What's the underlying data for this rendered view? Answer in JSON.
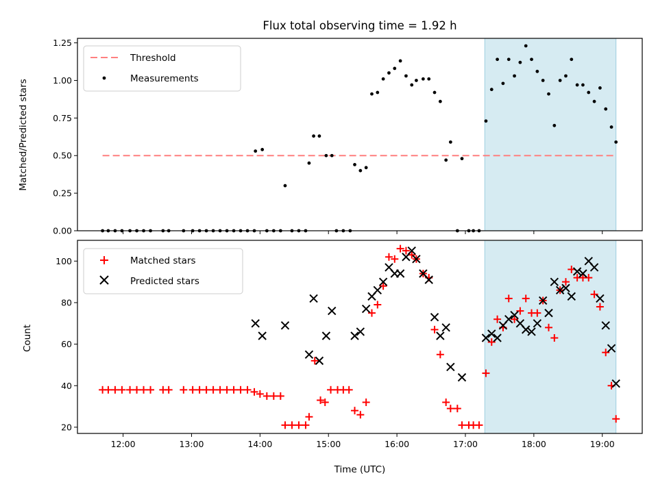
{
  "chart_data": [
    {
      "type": "scatter",
      "title": "Flux total observing time = 1.92 h",
      "xlabel": "",
      "ylabel": "Matched/Predicted stars",
      "xlim": [
        "11:20",
        "19:35"
      ],
      "ylim": [
        0,
        1.28
      ],
      "yticks": [
        "0.00",
        "0.25",
        "0.50",
        "0.75",
        "1.00",
        "1.25"
      ],
      "shaded_region": [
        "17:17",
        "19:12"
      ],
      "threshold": {
        "name": "Threshold",
        "value": 0.5,
        "x_range": [
          "11:42",
          "19:12"
        ],
        "color": "#ff7f7f"
      },
      "legend_position": "upper-left",
      "series": [
        {
          "name": "Measurements",
          "color": "#000000",
          "marker": "dot",
          "points": [
            [
              "11:42",
              0
            ],
            [
              "11:47",
              0
            ],
            [
              "11:53",
              0
            ],
            [
              "11:59",
              0
            ],
            [
              "12:06",
              0
            ],
            [
              "12:12",
              0
            ],
            [
              "12:18",
              0
            ],
            [
              "12:24",
              0
            ],
            [
              "12:35",
              0
            ],
            [
              "12:40",
              0
            ],
            [
              "12:53",
              0
            ],
            [
              "13:01",
              0
            ],
            [
              "13:07",
              0
            ],
            [
              "13:13",
              0
            ],
            [
              "13:19",
              0
            ],
            [
              "13:25",
              0
            ],
            [
              "13:31",
              0
            ],
            [
              "13:37",
              0
            ],
            [
              "13:43",
              0
            ],
            [
              "13:49",
              0
            ],
            [
              "13:55",
              0
            ],
            [
              "13:56",
              0.53
            ],
            [
              "14:02",
              0.54
            ],
            [
              "14:06",
              0
            ],
            [
              "14:12",
              0
            ],
            [
              "14:18",
              0
            ],
            [
              "14:22",
              0.3
            ],
            [
              "14:28",
              0
            ],
            [
              "14:34",
              0
            ],
            [
              "14:40",
              0
            ],
            [
              "14:43",
              0.45
            ],
            [
              "14:47",
              0.63
            ],
            [
              "14:52",
              0.63
            ],
            [
              "14:58",
              0.5
            ],
            [
              "15:03",
              0.5
            ],
            [
              "15:07",
              0
            ],
            [
              "15:13",
              0
            ],
            [
              "15:19",
              0
            ],
            [
              "15:23",
              0.44
            ],
            [
              "15:28",
              0.4
            ],
            [
              "15:33",
              0.42
            ],
            [
              "15:38",
              0.91
            ],
            [
              "15:43",
              0.92
            ],
            [
              "15:48",
              1.01
            ],
            [
              "15:53",
              1.05
            ],
            [
              "15:58",
              1.08
            ],
            [
              "16:03",
              1.13
            ],
            [
              "16:08",
              1.03
            ],
            [
              "16:13",
              0.97
            ],
            [
              "16:17",
              1.0
            ],
            [
              "16:23",
              1.01
            ],
            [
              "16:28",
              1.01
            ],
            [
              "16:33",
              0.92
            ],
            [
              "16:38",
              0.86
            ],
            [
              "16:43",
              0.47
            ],
            [
              "16:47",
              0.59
            ],
            [
              "16:53",
              0
            ],
            [
              "16:57",
              0.48
            ],
            [
              "17:03",
              0
            ],
            [
              "17:07",
              0
            ],
            [
              "17:12",
              0
            ],
            [
              "17:18",
              0.73
            ],
            [
              "17:23",
              0.94
            ],
            [
              "17:28",
              1.14
            ],
            [
              "17:33",
              0.98
            ],
            [
              "17:38",
              1.14
            ],
            [
              "17:43",
              1.03
            ],
            [
              "17:48",
              1.12
            ],
            [
              "17:53",
              1.23
            ],
            [
              "17:58",
              1.14
            ],
            [
              "18:03",
              1.06
            ],
            [
              "18:08",
              1.0
            ],
            [
              "18:13",
              0.91
            ],
            [
              "18:18",
              0.7
            ],
            [
              "18:23",
              1.0
            ],
            [
              "18:28",
              1.03
            ],
            [
              "18:33",
              1.14
            ],
            [
              "18:38",
              0.97
            ],
            [
              "18:43",
              0.97
            ],
            [
              "18:48",
              0.92
            ],
            [
              "18:53",
              0.86
            ],
            [
              "18:58",
              0.95
            ],
            [
              "19:03",
              0.81
            ],
            [
              "19:08",
              0.69
            ],
            [
              "19:12",
              0.59
            ]
          ]
        }
      ]
    },
    {
      "type": "scatter",
      "title": "",
      "xlabel": "Time (UTC)",
      "ylabel": "Count",
      "xlim": [
        "11:20",
        "19:35"
      ],
      "ylim": [
        17,
        110
      ],
      "yticks": [
        "20",
        "40",
        "60",
        "80",
        "100"
      ],
      "xticks": [
        "12:00",
        "13:00",
        "14:00",
        "15:00",
        "16:00",
        "17:00",
        "18:00",
        "19:00"
      ],
      "shaded_region": [
        "17:17",
        "19:12"
      ],
      "legend_position": "upper-left",
      "series": [
        {
          "name": "Matched stars",
          "color": "#ff0000",
          "marker": "plus",
          "points": [
            [
              "11:42",
              38
            ],
            [
              "11:47",
              38
            ],
            [
              "11:53",
              38
            ],
            [
              "11:59",
              38
            ],
            [
              "12:06",
              38
            ],
            [
              "12:12",
              38
            ],
            [
              "12:18",
              38
            ],
            [
              "12:24",
              38
            ],
            [
              "12:35",
              38
            ],
            [
              "12:40",
              38
            ],
            [
              "12:53",
              38
            ],
            [
              "13:01",
              38
            ],
            [
              "13:07",
              38
            ],
            [
              "13:13",
              38
            ],
            [
              "13:19",
              38
            ],
            [
              "13:25",
              38
            ],
            [
              "13:31",
              38
            ],
            [
              "13:37",
              38
            ],
            [
              "13:43",
              38
            ],
            [
              "13:49",
              38
            ],
            [
              "13:55",
              37
            ],
            [
              "14:00",
              36
            ],
            [
              "14:06",
              35
            ],
            [
              "14:12",
              35
            ],
            [
              "14:18",
              35
            ],
            [
              "14:22",
              21
            ],
            [
              "14:28",
              21
            ],
            [
              "14:34",
              21
            ],
            [
              "14:40",
              21
            ],
            [
              "14:43",
              25
            ],
            [
              "14:48",
              52
            ],
            [
              "14:53",
              33
            ],
            [
              "14:57",
              32
            ],
            [
              "15:02",
              38
            ],
            [
              "15:08",
              38
            ],
            [
              "15:13",
              38
            ],
            [
              "15:18",
              38
            ],
            [
              "15:23",
              28
            ],
            [
              "15:28",
              26
            ],
            [
              "15:33",
              32
            ],
            [
              "15:38",
              75
            ],
            [
              "15:43",
              79
            ],
            [
              "15:48",
              88
            ],
            [
              "15:53",
              102
            ],
            [
              "15:58",
              101
            ],
            [
              "16:03",
              106
            ],
            [
              "16:08",
              105
            ],
            [
              "16:13",
              103
            ],
            [
              "16:17",
              101
            ],
            [
              "16:23",
              94
            ],
            [
              "16:28",
              92
            ],
            [
              "16:33",
              67
            ],
            [
              "16:38",
              55
            ],
            [
              "16:43",
              32
            ],
            [
              "16:47",
              29
            ],
            [
              "16:53",
              29
            ],
            [
              "16:57",
              21
            ],
            [
              "17:03",
              21
            ],
            [
              "17:07",
              21
            ],
            [
              "17:12",
              21
            ],
            [
              "17:18",
              46
            ],
            [
              "17:23",
              61
            ],
            [
              "17:28",
              72
            ],
            [
              "17:33",
              68
            ],
            [
              "17:38",
              82
            ],
            [
              "17:43",
              72
            ],
            [
              "17:48",
              76
            ],
            [
              "17:53",
              82
            ],
            [
              "17:58",
              75
            ],
            [
              "18:03",
              75
            ],
            [
              "18:08",
              81
            ],
            [
              "18:13",
              68
            ],
            [
              "18:18",
              63
            ],
            [
              "18:23",
              86
            ],
            [
              "18:28",
              90
            ],
            [
              "18:33",
              96
            ],
            [
              "18:38",
              92
            ],
            [
              "18:43",
              92
            ],
            [
              "18:48",
              92
            ],
            [
              "18:53",
              84
            ],
            [
              "18:58",
              78
            ],
            [
              "19:03",
              56
            ],
            [
              "19:08",
              40
            ],
            [
              "19:12",
              24
            ]
          ]
        },
        {
          "name": "Predicted stars",
          "color": "#000000",
          "marker": "x",
          "points": [
            [
              "13:56",
              70
            ],
            [
              "14:02",
              64
            ],
            [
              "14:22",
              69
            ],
            [
              "14:43",
              55
            ],
            [
              "14:47",
              82
            ],
            [
              "14:52",
              52
            ],
            [
              "14:58",
              64
            ],
            [
              "15:03",
              76
            ],
            [
              "15:23",
              64
            ],
            [
              "15:28",
              66
            ],
            [
              "15:33",
              77
            ],
            [
              "15:38",
              83
            ],
            [
              "15:43",
              86
            ],
            [
              "15:48",
              90
            ],
            [
              "15:53",
              97
            ],
            [
              "15:58",
              94
            ],
            [
              "16:03",
              94
            ],
            [
              "16:08",
              102
            ],
            [
              "16:13",
              105
            ],
            [
              "16:17",
              101
            ],
            [
              "16:23",
              94
            ],
            [
              "16:28",
              91
            ],
            [
              "16:33",
              73
            ],
            [
              "16:38",
              64
            ],
            [
              "16:43",
              68
            ],
            [
              "16:47",
              49
            ],
            [
              "16:57",
              44
            ],
            [
              "17:18",
              63
            ],
            [
              "17:23",
              65
            ],
            [
              "17:28",
              63
            ],
            [
              "17:33",
              69
            ],
            [
              "17:38",
              72
            ],
            [
              "17:43",
              74
            ],
            [
              "17:48",
              70
            ],
            [
              "17:53",
              67
            ],
            [
              "17:58",
              66
            ],
            [
              "18:03",
              70
            ],
            [
              "18:08",
              81
            ],
            [
              "18:13",
              75
            ],
            [
              "18:18",
              90
            ],
            [
              "18:23",
              86
            ],
            [
              "18:28",
              87
            ],
            [
              "18:33",
              83
            ],
            [
              "18:38",
              95
            ],
            [
              "18:43",
              94
            ],
            [
              "18:48",
              100
            ],
            [
              "18:53",
              97
            ],
            [
              "18:58",
              82
            ],
            [
              "19:03",
              69
            ],
            [
              "19:08",
              58
            ],
            [
              "19:12",
              41
            ]
          ]
        }
      ]
    }
  ]
}
